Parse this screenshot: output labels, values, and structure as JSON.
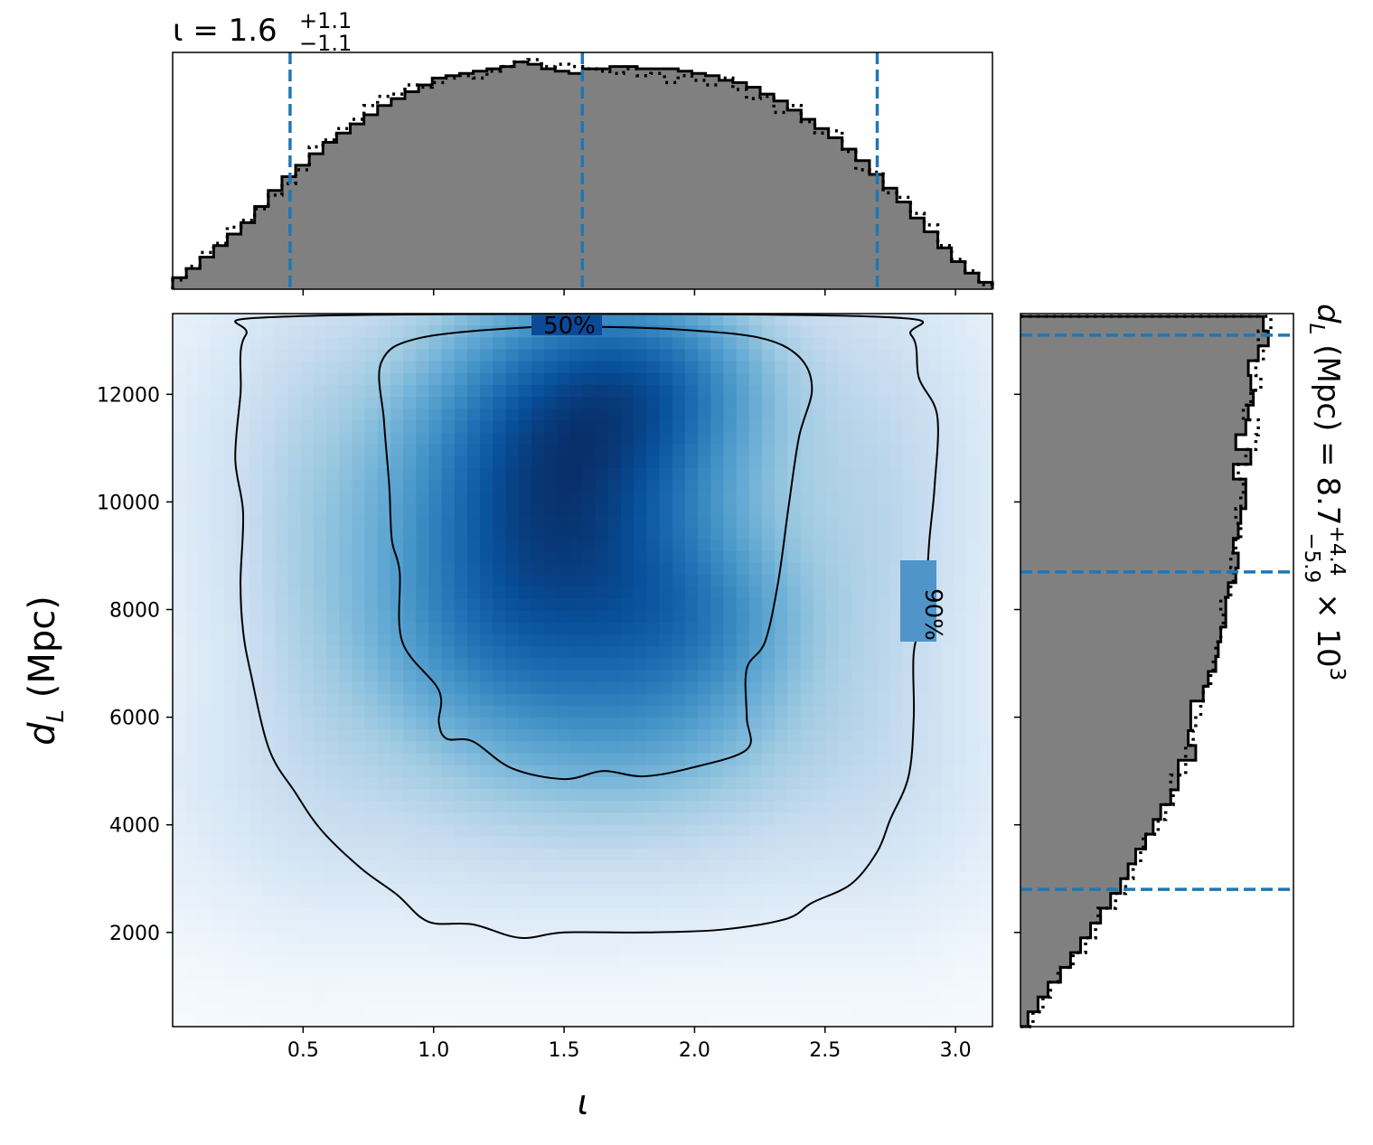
{
  "chart_data": [
    {
      "panel": "top-marginal",
      "type": "histogram",
      "title_prefix": "ι = 1.6",
      "title_sup": "+1.1",
      "title_sub": "−1.1",
      "xlim": [
        0,
        3.1416
      ],
      "quantile_lines": [
        0.45,
        1.57,
        2.7
      ],
      "line_color": "#1f77b4",
      "fill_color": "#808080",
      "bin_edges": [
        0.0,
        0.05236,
        0.10472,
        0.15708,
        0.20944,
        0.2618,
        0.31416,
        0.36652,
        0.41888,
        0.47124,
        0.5236,
        0.57596,
        0.62832,
        0.68068,
        0.73304,
        0.7854,
        0.83776,
        0.89012,
        0.94248,
        0.99484,
        1.0472,
        1.09956,
        1.15192,
        1.20428,
        1.25664,
        1.309,
        1.36136,
        1.41372,
        1.46608,
        1.51844,
        1.5708,
        1.62316,
        1.67552,
        1.72788,
        1.78024,
        1.8326,
        1.88496,
        1.93732,
        1.98968,
        2.04204,
        2.0944,
        2.14676,
        2.19912,
        2.25148,
        2.30384,
        2.3562,
        2.40856,
        2.46092,
        2.51328,
        2.56564,
        2.618,
        2.67036,
        2.72272,
        2.77508,
        2.82744,
        2.8798,
        2.93216,
        2.98452,
        3.03688,
        3.08924,
        3.1416
      ],
      "density_solid": [
        0.05,
        0.09,
        0.14,
        0.19,
        0.24,
        0.29,
        0.36,
        0.43,
        0.49,
        0.54,
        0.59,
        0.64,
        0.68,
        0.72,
        0.76,
        0.8,
        0.83,
        0.86,
        0.89,
        0.92,
        0.93,
        0.94,
        0.95,
        0.96,
        0.97,
        0.99,
        0.98,
        0.96,
        0.95,
        0.94,
        0.96,
        0.96,
        0.97,
        0.97,
        0.96,
        0.96,
        0.96,
        0.95,
        0.94,
        0.93,
        0.91,
        0.9,
        0.88,
        0.85,
        0.82,
        0.78,
        0.74,
        0.7,
        0.66,
        0.61,
        0.56,
        0.5,
        0.44,
        0.38,
        0.31,
        0.25,
        0.18,
        0.12,
        0.07,
        0.03
      ],
      "density_dotted": [
        0.04,
        0.1,
        0.16,
        0.2,
        0.27,
        0.3,
        0.35,
        0.41,
        0.46,
        0.52,
        0.62,
        0.65,
        0.7,
        0.74,
        0.8,
        0.84,
        0.85,
        0.89,
        0.88,
        0.9,
        0.92,
        0.93,
        0.92,
        0.95,
        0.97,
        0.99,
        1.0,
        0.97,
        0.98,
        0.97,
        0.96,
        0.95,
        0.94,
        0.96,
        0.93,
        0.94,
        0.9,
        0.93,
        0.91,
        0.89,
        0.92,
        0.87,
        0.83,
        0.84,
        0.77,
        0.8,
        0.73,
        0.68,
        0.69,
        0.6,
        0.52,
        0.51,
        0.42,
        0.4,
        0.33,
        0.28,
        0.19,
        0.13,
        0.08,
        0.02
      ]
    },
    {
      "panel": "main-2d",
      "type": "heatmap",
      "xlabel": "ι",
      "ylabel_main": "d",
      "ylabel_sub": "L",
      "ylabel_unit": " (Mpc)",
      "xlim": [
        0,
        3.1416
      ],
      "ylim": [
        250,
        13500
      ],
      "xticks": [
        "0.5",
        "1.0",
        "1.5",
        "2.0",
        "2.5",
        "3.0"
      ],
      "xtick_values": [
        0.5,
        1.0,
        1.5,
        2.0,
        2.5,
        3.0
      ],
      "yticks": [
        "2000",
        "4000",
        "6000",
        "8000",
        "10000",
        "12000"
      ],
      "ytick_values": [
        2000,
        4000,
        6000,
        8000,
        10000,
        12000
      ],
      "colormap": "Blues",
      "contour_labels": [
        "50%",
        "90%"
      ],
      "contour_90": [
        [
          0.47,
          13450
        ],
        [
          0.28,
          13100
        ],
        [
          0.26,
          12000
        ],
        [
          0.24,
          10800
        ],
        [
          0.27,
          9800
        ],
        [
          0.26,
          8500
        ],
        [
          0.27,
          7600
        ],
        [
          0.3,
          6800
        ],
        [
          0.37,
          5400
        ],
        [
          0.47,
          4600
        ],
        [
          0.57,
          3900
        ],
        [
          0.72,
          3200
        ],
        [
          0.86,
          2700
        ],
        [
          0.98,
          2200
        ],
        [
          1.15,
          2150
        ],
        [
          1.33,
          1900
        ],
        [
          1.5,
          2000
        ],
        [
          1.8,
          2000
        ],
        [
          2.1,
          2050
        ],
        [
          2.35,
          2250
        ],
        [
          2.45,
          2550
        ],
        [
          2.6,
          2900
        ],
        [
          2.7,
          3500
        ],
        [
          2.75,
          4100
        ],
        [
          2.82,
          4900
        ],
        [
          2.84,
          6000
        ],
        [
          2.84,
          7200
        ],
        [
          2.88,
          8000
        ],
        [
          2.9,
          9300
        ],
        [
          2.92,
          10300
        ],
        [
          2.93,
          11600
        ],
        [
          2.86,
          12300
        ],
        [
          2.83,
          13100
        ],
        [
          2.65,
          13450
        ]
      ],
      "contour_50": [
        [
          1.38,
          13250
        ],
        [
          0.95,
          13050
        ],
        [
          0.8,
          12600
        ],
        [
          0.81,
          11500
        ],
        [
          0.83,
          10300
        ],
        [
          0.84,
          9300
        ],
        [
          0.87,
          8700
        ],
        [
          0.88,
          7400
        ],
        [
          1.02,
          6500
        ],
        [
          1.02,
          5900
        ],
        [
          1.05,
          5600
        ],
        [
          1.15,
          5550
        ],
        [
          1.3,
          5050
        ],
        [
          1.5,
          4850
        ],
        [
          1.65,
          5000
        ],
        [
          1.8,
          4900
        ],
        [
          1.98,
          5050
        ],
        [
          2.2,
          5400
        ],
        [
          2.2,
          6000
        ],
        [
          2.2,
          6900
        ],
        [
          2.27,
          7400
        ],
        [
          2.32,
          8500
        ],
        [
          2.36,
          9900
        ],
        [
          2.4,
          11200
        ],
        [
          2.45,
          12100
        ],
        [
          2.4,
          12700
        ],
        [
          2.25,
          13050
        ],
        [
          1.95,
          13200
        ],
        [
          1.67,
          13250
        ]
      ],
      "density_blobs": [
        [
          1.5,
          11900,
          0.38,
          1700,
          1.0
        ],
        [
          1.9,
          12300,
          0.3,
          1200,
          0.7
        ],
        [
          1.4,
          9800,
          0.45,
          1800,
          0.85
        ],
        [
          1.55,
          8300,
          0.45,
          1600,
          0.75
        ],
        [
          2.05,
          7800,
          0.3,
          1100,
          0.55
        ],
        [
          1.8,
          6000,
          0.45,
          1200,
          0.5
        ],
        [
          1.1,
          7200,
          0.35,
          1300,
          0.45
        ],
        [
          1.6,
          10600,
          0.95,
          3200,
          0.6
        ],
        [
          1.55,
          5000,
          0.95,
          1500,
          0.35
        ],
        [
          0.5,
          9000,
          0.22,
          3500,
          0.22
        ],
        [
          2.75,
          9000,
          0.22,
          3500,
          0.22
        ],
        [
          1.6,
          3400,
          1.2,
          1400,
          0.14
        ]
      ]
    },
    {
      "panel": "right-marginal",
      "type": "histogram",
      "orientation": "horizontal",
      "label_main": "d",
      "label_sub": "L",
      "label_rest": " (Mpc) = 8.7",
      "label_sup": "+4.4",
      "label_lower": "−5.9",
      "label_times": " × 10",
      "label_exp": "3",
      "ylim": [
        250,
        13500
      ],
      "quantile_lines": [
        2800,
        8700,
        13100
      ],
      "line_color": "#1f77b4",
      "fill_color": "#808080",
      "bin_edges": [
        250,
        525,
        800,
        1075,
        1350,
        1625,
        1900,
        2175,
        2450,
        2725,
        3000,
        3275,
        3550,
        3825,
        4100,
        4375,
        4650,
        4925,
        5200,
        5475,
        5750,
        6025,
        6300,
        6575,
        6850,
        7125,
        7400,
        7675,
        7950,
        8225,
        8500,
        8775,
        9050,
        9325,
        9600,
        9875,
        10150,
        10425,
        10700,
        10975,
        11250,
        11525,
        11800,
        12075,
        12350,
        12625,
        12900,
        13175,
        13450
      ],
      "density_solid": [
        0.03,
        0.07,
        0.11,
        0.16,
        0.2,
        0.24,
        0.28,
        0.32,
        0.36,
        0.4,
        0.43,
        0.46,
        0.5,
        0.53,
        0.56,
        0.6,
        0.63,
        0.63,
        0.7,
        0.67,
        0.68,
        0.68,
        0.73,
        0.75,
        0.78,
        0.79,
        0.8,
        0.82,
        0.82,
        0.83,
        0.86,
        0.87,
        0.85,
        0.87,
        0.88,
        0.9,
        0.9,
        0.85,
        0.92,
        0.86,
        0.9,
        0.91,
        0.93,
        0.92,
        0.91,
        0.95,
        0.99,
        0.97
      ],
      "density_dotted": [
        0.05,
        0.09,
        0.12,
        0.15,
        0.21,
        0.26,
        0.3,
        0.31,
        0.38,
        0.42,
        0.45,
        0.48,
        0.49,
        0.55,
        0.58,
        0.61,
        0.6,
        0.66,
        0.66,
        0.69,
        0.7,
        0.72,
        0.73,
        0.76,
        0.77,
        0.78,
        0.8,
        0.81,
        0.8,
        0.84,
        0.85,
        0.84,
        0.86,
        0.88,
        0.86,
        0.88,
        0.89,
        0.87,
        0.9,
        0.94,
        0.95,
        0.89,
        0.92,
        0.96,
        0.94,
        0.97,
        0.95,
        1.0
      ]
    }
  ]
}
